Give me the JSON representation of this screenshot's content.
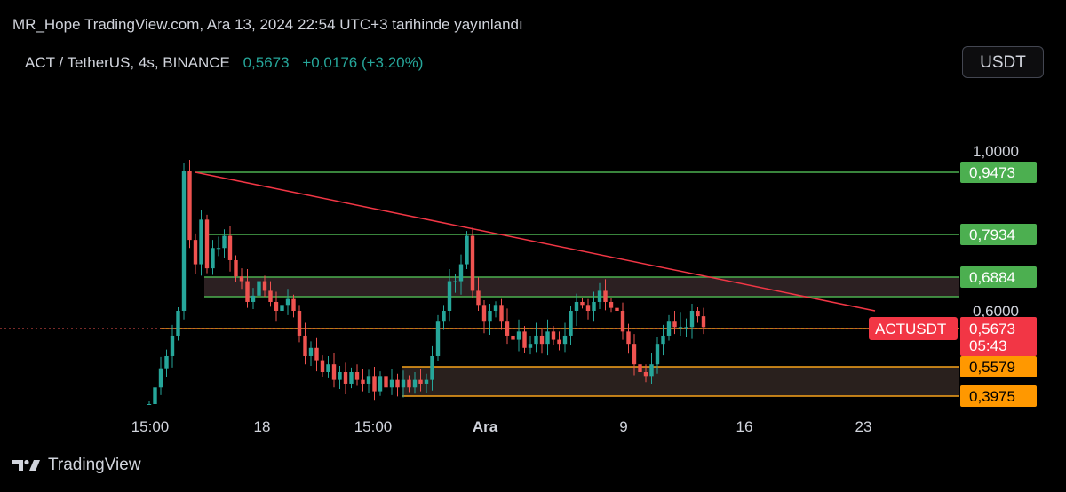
{
  "header": {
    "published": "MR_Hope TradingView.com, Ara 13, 2024 22:54 UTC+3 tarihinde yayınlandı"
  },
  "symbol": {
    "title": "ACT / TetherUS, 4s, BINANCE",
    "price": "0,5673",
    "change": "+0,0176 (+3,20%)"
  },
  "currency_button": {
    "label": "USDT"
  },
  "footer": {
    "brand": "TradingView"
  },
  "colors": {
    "background": "#000000",
    "up": "#26a69a",
    "down": "#ef5350",
    "green_level": "#4caf50",
    "orange_level": "#f7a21b",
    "trendline": "#f23645",
    "zone_fill": "#3a2a2a"
  },
  "chart_data": {
    "type": "candlestick",
    "x_tick_labels": [
      "15:00",
      "18",
      "15:00",
      "Ara",
      "9",
      "16",
      "23"
    ],
    "y_tick_labels": [
      "1,0000",
      "0,6000"
    ],
    "price_labels": [
      {
        "value": "0,9473",
        "color": "green"
      },
      {
        "value": "0,7934",
        "color": "green"
      },
      {
        "value": "0,6884",
        "color": "green"
      },
      {
        "value": "0,5579",
        "color": "orange"
      },
      {
        "value": "0,3975",
        "color": "orange"
      }
    ],
    "current": {
      "symbol": "ACTUSDT",
      "price": "0,5673",
      "countdown": "05:43"
    },
    "horizontal_levels": [
      0.9473,
      0.7934,
      0.6884,
      0.6479,
      0.5673,
      0.4739,
      0.3975
    ],
    "zones": [
      {
        "top": 0.6884,
        "bottom": 0.6479,
        "color": "grey-red"
      },
      {
        "top": 0.4739,
        "bottom": 0.3975,
        "color": "orange"
      }
    ],
    "trendline": {
      "from_price": 0.9473,
      "to_price": 0.6
    },
    "candles_closes": [
      0.365,
      0.42,
      0.47,
      0.5,
      0.55,
      0.6,
      0.95,
      0.78,
      0.72,
      0.83,
      0.71,
      0.76,
      0.76,
      0.79,
      0.73,
      0.69,
      0.68,
      0.63,
      0.65,
      0.68,
      0.66,
      0.63,
      0.6,
      0.62,
      0.64,
      0.6,
      0.55,
      0.5,
      0.52,
      0.49,
      0.46,
      0.48,
      0.44,
      0.46,
      0.43,
      0.46,
      0.44,
      0.43,
      0.45,
      0.41,
      0.45,
      0.42,
      0.44,
      0.42,
      0.44,
      0.42,
      0.44,
      0.43,
      0.44,
      0.5,
      0.58,
      0.6,
      0.68,
      0.68,
      0.72,
      0.79,
      0.66,
      0.62,
      0.58,
      0.6,
      0.62,
      0.58,
      0.55,
      0.54,
      0.56,
      0.52,
      0.53,
      0.55,
      0.53,
      0.56,
      0.54,
      0.53,
      0.55,
      0.6,
      0.63,
      0.62,
      0.6,
      0.63,
      0.66,
      0.63,
      0.61,
      0.6,
      0.56,
      0.53,
      0.48,
      0.46,
      0.45,
      0.48,
      0.53,
      0.55,
      0.58,
      0.57,
      0.57,
      0.57,
      0.6,
      0.59,
      0.57
    ]
  }
}
